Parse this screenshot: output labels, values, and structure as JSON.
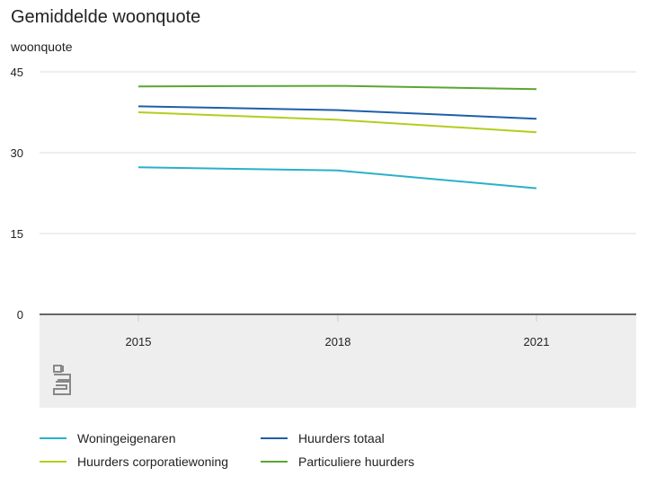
{
  "colors": {
    "woningeigenaren": "#2ab0c8",
    "huurders_totaal": "#1e5fa8",
    "huurders_corporatie": "#b5cc1e",
    "particuliere": "#5aa632",
    "grid": "#dddddd",
    "axis": "#666666",
    "xaxis_band": "#eeeeee"
  },
  "chart_data": {
    "type": "line",
    "title": "Gemiddelde woonquote",
    "ylabel": "woonquote",
    "xlabel": "",
    "x": [
      "2015",
      "2018",
      "2021"
    ],
    "ylim": [
      0,
      45
    ],
    "yticks": [
      0,
      15,
      30,
      45
    ],
    "grid": true,
    "legend_position": "bottom",
    "series": [
      {
        "name": "Woningeigenaren",
        "color_key": "woningeigenaren",
        "values": [
          27.3,
          26.7,
          23.4
        ]
      },
      {
        "name": "Huurders totaal",
        "color_key": "huurders_totaal",
        "values": [
          38.6,
          37.9,
          36.3
        ]
      },
      {
        "name": "Huurders corporatiewoning",
        "color_key": "huurders_corporatie",
        "values": [
          37.5,
          36.1,
          33.8
        ]
      },
      {
        "name": "Particuliere huurders",
        "color_key": "particuliere",
        "values": [
          42.3,
          42.4,
          41.8
        ]
      }
    ]
  },
  "logo": {
    "icon": "cbs-logo-icon",
    "text": "cbs"
  }
}
